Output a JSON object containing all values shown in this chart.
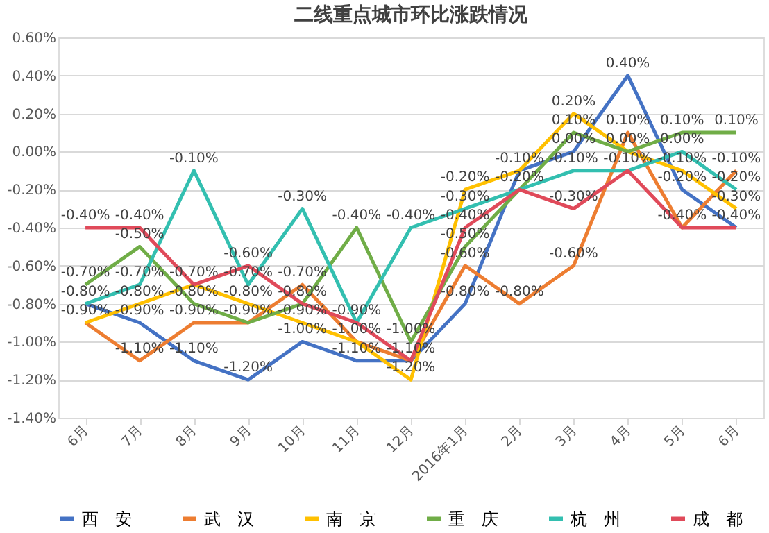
{
  "chart_data": {
    "type": "line",
    "title": "二线重点城市环比涨跌情况",
    "categories": [
      "6月",
      "7月",
      "8月",
      "9月",
      "10月",
      "11月",
      "12月",
      "2016年1月",
      "2月",
      "3月",
      "4月",
      "5月",
      "6月"
    ],
    "series": [
      {
        "name": "西　安",
        "color": "#4472c4",
        "values": [
          -0.8,
          -0.9,
          -1.1,
          -1.2,
          -1.0,
          -1.1,
          -1.1,
          -0.8,
          -0.1,
          0.0,
          0.4,
          -0.2,
          -0.4
        ],
        "value_labels": [
          "-0.80%",
          "-0.90%",
          "-1.10%",
          "-1.20%",
          "-1.00%",
          "-1.10%",
          "-1.10%",
          "-0.80%",
          "-0.10%",
          "0.00%",
          "0.40%",
          "-0.20%",
          "-0.40%"
        ]
      },
      {
        "name": "武　汉",
        "color": "#ed7d31",
        "values": [
          -0.9,
          -1.1,
          -0.9,
          -0.9,
          -0.7,
          -1.0,
          -1.1,
          -0.6,
          -0.8,
          -0.6,
          0.1,
          -0.4,
          -0.1
        ],
        "value_labels": [
          "-0.90%",
          "-1.10%",
          "-0.90%",
          "-0.90%",
          "-0.70%",
          "-1.00%",
          null,
          "-0.60%",
          "-0.80%",
          "-0.60%",
          "0.10%",
          "-0.40%",
          "-0.10%"
        ]
      },
      {
        "name": "南　京",
        "color": "#ffc000",
        "values": [
          -0.9,
          -0.8,
          -0.7,
          -0.8,
          -0.9,
          -1.0,
          -1.2,
          -0.2,
          -0.1,
          0.2,
          0.0,
          -0.1,
          -0.3
        ],
        "value_labels": [
          null,
          "-0.80%",
          "-0.70%",
          "-0.80%",
          "-0.90%",
          null,
          "-1.20%",
          "-0.20%",
          null,
          "0.20%",
          "0.00%",
          "-0.10%",
          "-0.30%"
        ]
      },
      {
        "name": "重　庆",
        "color": "#70ad47",
        "values": [
          -0.7,
          -0.5,
          -0.8,
          -0.9,
          -0.8,
          -0.4,
          -1.0,
          -0.5,
          -0.2,
          0.1,
          0.0,
          0.1,
          0.1
        ],
        "value_labels": [
          "-0.70%",
          "-0.50%",
          "-0.80%",
          null,
          "-0.80%",
          "-0.40%",
          "-1.00%",
          "-0.50%",
          "-0.20%",
          "0.10%",
          null,
          "0.10%",
          "0.10%"
        ]
      },
      {
        "name": "杭　州",
        "color": "#33bfb0",
        "values": [
          -0.8,
          -0.7,
          -0.1,
          -0.7,
          -0.3,
          -0.9,
          -0.4,
          -0.3,
          -0.2,
          -0.1,
          -0.1,
          0.0,
          -0.2
        ],
        "value_labels": [
          null,
          "-0.70%",
          "-0.10%",
          "-0.70%",
          "-0.30%",
          "-0.90%",
          "-0.40%",
          "-0.30%",
          null,
          "-0.10%",
          "-0.10%",
          "0.00%",
          "-0.20%"
        ]
      },
      {
        "name": "成　都",
        "color": "#e04a5a",
        "values": [
          -0.4,
          -0.4,
          -0.7,
          -0.6,
          -0.8,
          -0.9,
          -1.1,
          -0.4,
          -0.2,
          -0.3,
          -0.1,
          -0.4,
          -0.4
        ],
        "value_labels": [
          "-0.40%",
          "-0.40%",
          null,
          "-0.60%",
          null,
          null,
          null,
          "-0.40%",
          null,
          "-0.30%",
          null,
          null,
          null
        ]
      }
    ],
    "ylim": [
      -1.4,
      0.6
    ],
    "yticks": [
      {
        "value": -1.4,
        "label": "-1.40%"
      },
      {
        "value": -1.2,
        "label": "-1.20%"
      },
      {
        "value": -1.0,
        "label": "-1.00%"
      },
      {
        "value": -0.8,
        "label": "-0.80%"
      },
      {
        "value": -0.6,
        "label": "-0.60%"
      },
      {
        "value": -0.4,
        "label": "-0.40%"
      },
      {
        "value": -0.2,
        "label": "-0.20%"
      },
      {
        "value": 0.0,
        "label": "0.00%"
      },
      {
        "value": 0.2,
        "label": "0.20%"
      },
      {
        "value": 0.4,
        "label": "0.40%"
      },
      {
        "value": 0.6,
        "label": "0.60%"
      }
    ],
    "grid": "y",
    "legend": "bottom",
    "marker": "none",
    "line_style": "solid"
  }
}
